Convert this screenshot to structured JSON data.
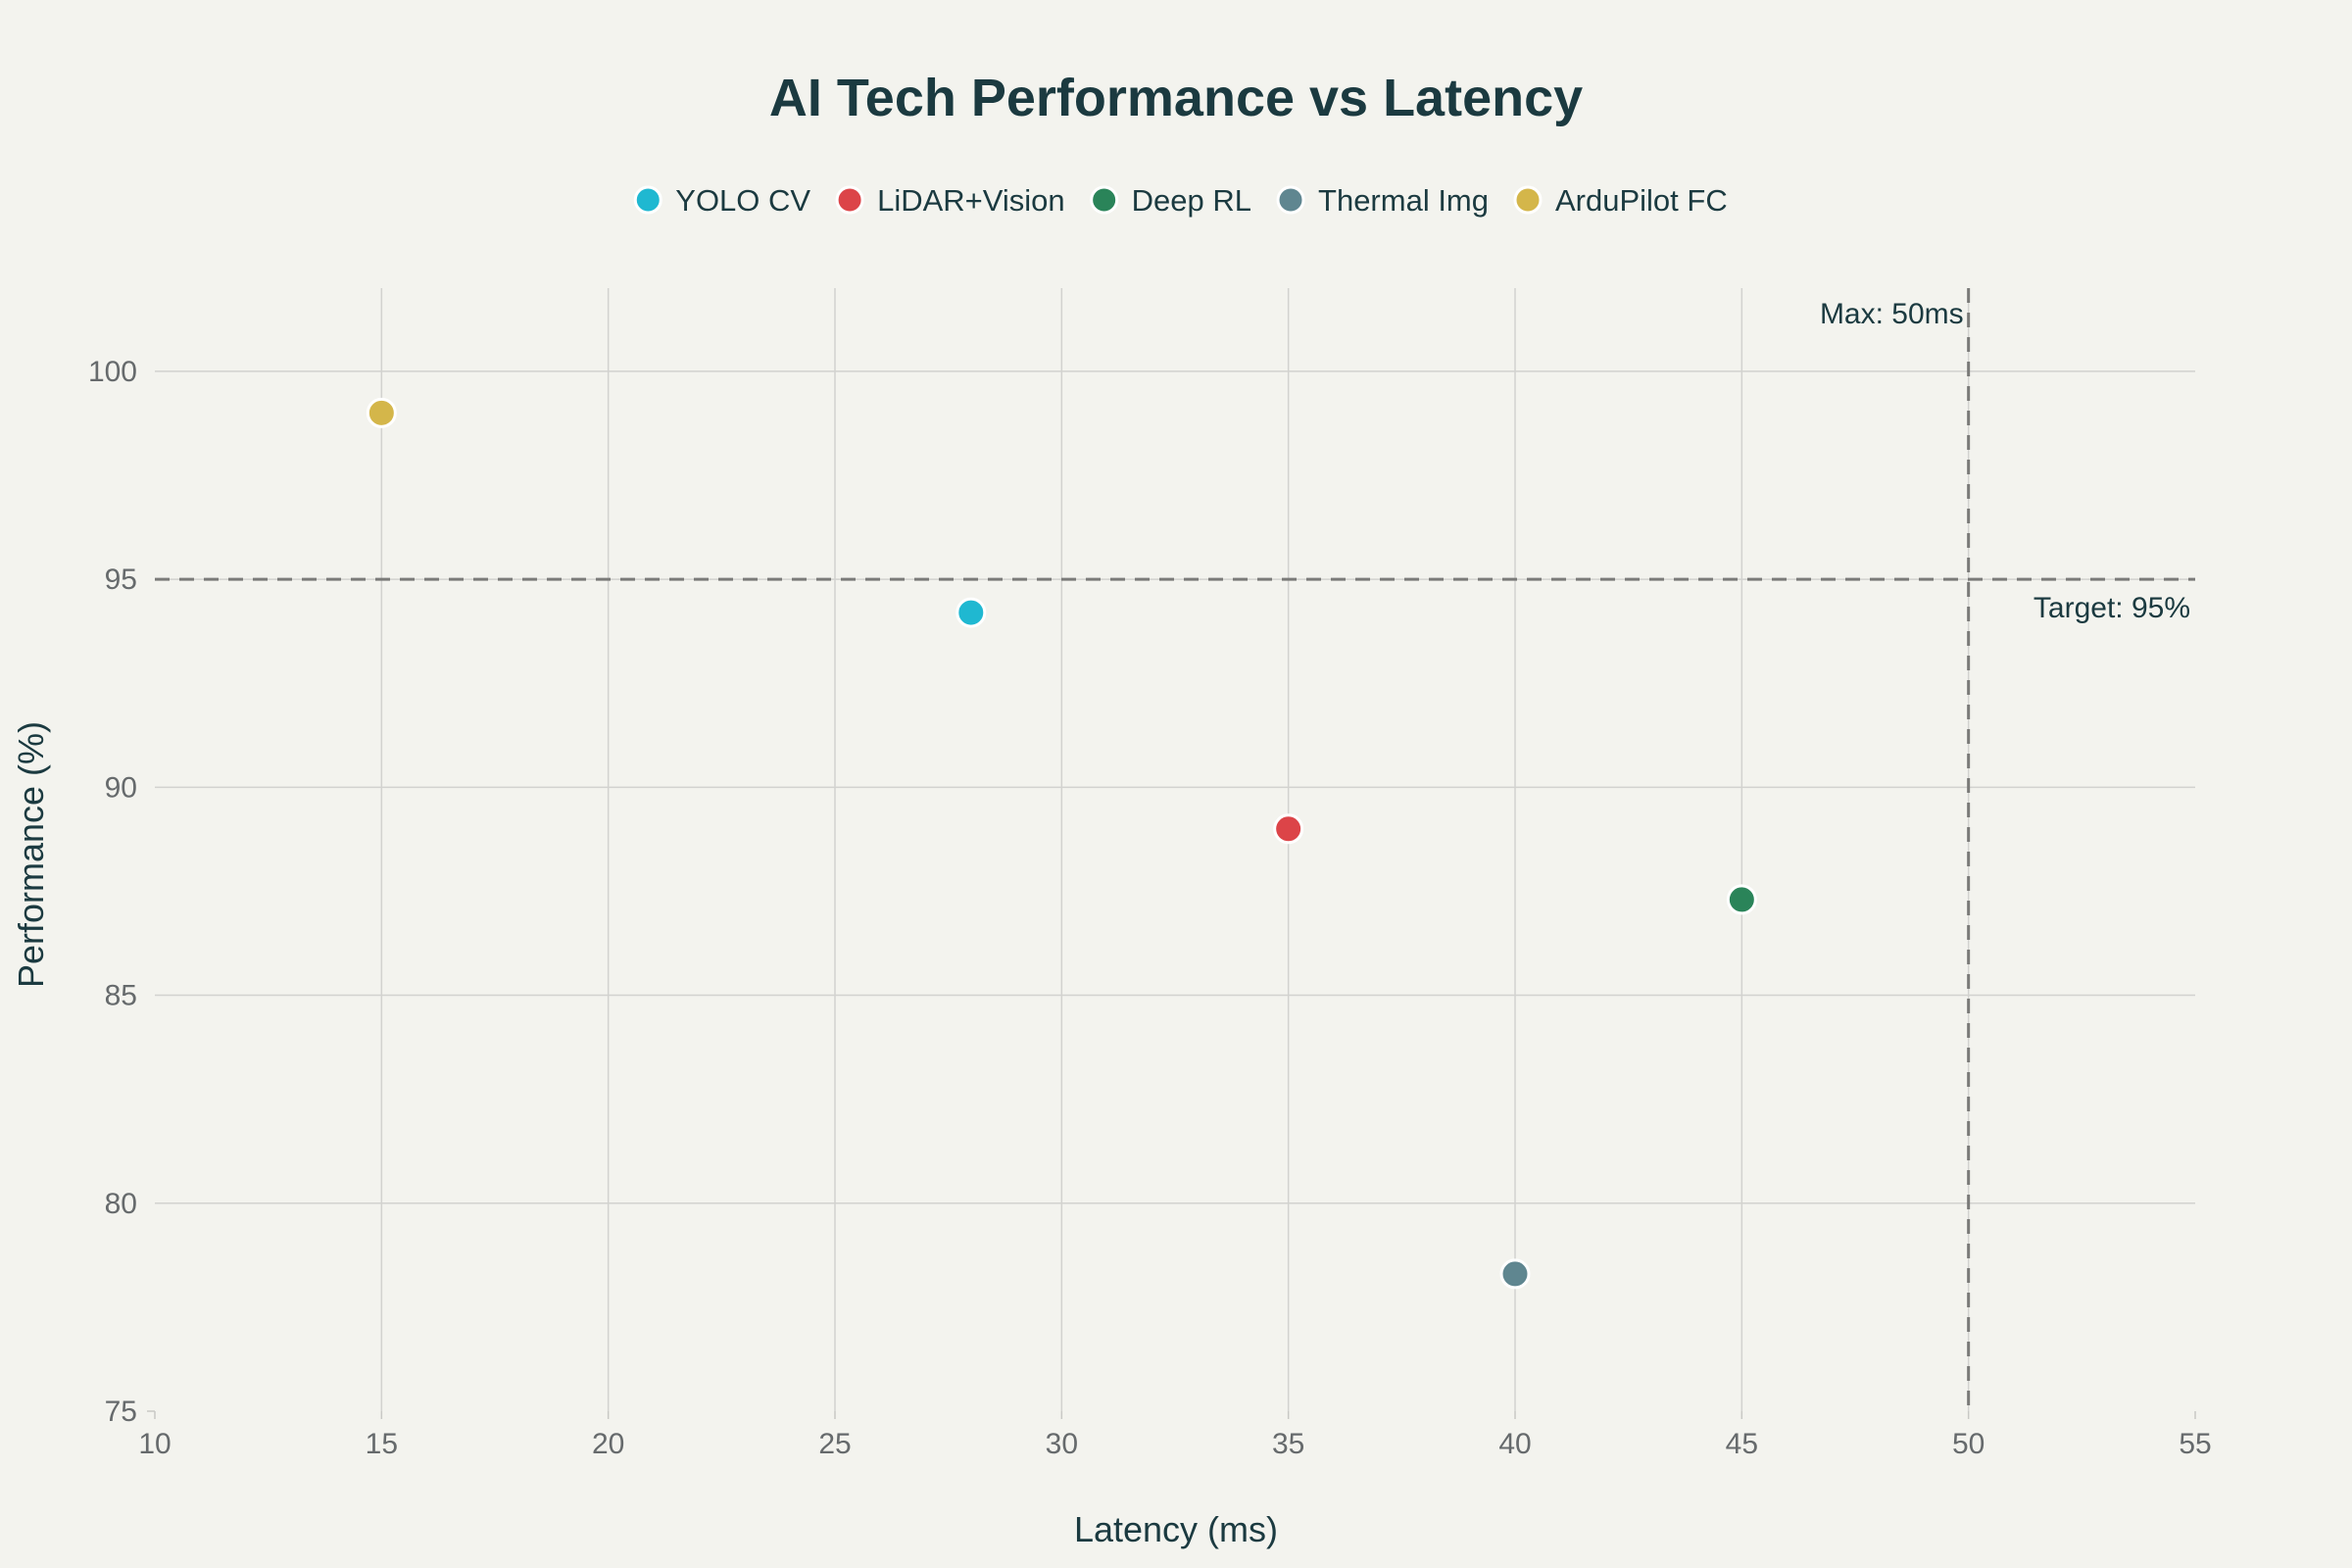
{
  "chart_data": {
    "type": "scatter",
    "title": "AI Tech Performance vs Latency",
    "xlabel": "Latency (ms)",
    "ylabel": "Performance (%)",
    "xlim": [
      10,
      55
    ],
    "ylim": [
      75,
      102
    ],
    "xticks": [
      10,
      15,
      20,
      25,
      30,
      35,
      40,
      45,
      50,
      55
    ],
    "yticks": [
      75,
      80,
      85,
      90,
      95,
      100
    ],
    "grid": true,
    "legend_position": "top-center",
    "series": [
      {
        "name": "YOLO CV",
        "color": "#1fb8d1",
        "x": [
          28
        ],
        "y": [
          94.2
        ]
      },
      {
        "name": "LiDAR+Vision",
        "color": "#dc4448",
        "x": [
          35
        ],
        "y": [
          89
        ]
      },
      {
        "name": "Deep RL",
        "color": "#2a8459",
        "x": [
          45
        ],
        "y": [
          87.3
        ]
      },
      {
        "name": "Thermal Img",
        "color": "#5f8690",
        "x": [
          40
        ],
        "y": [
          78.3
        ]
      },
      {
        "name": "ArduPilot FC",
        "color": "#d4b64a",
        "x": [
          15
        ],
        "y": [
          99
        ]
      }
    ],
    "reference_lines": [
      {
        "orientation": "horizontal",
        "value": 95,
        "label": "Target: 95%"
      },
      {
        "orientation": "vertical",
        "value": 50,
        "label": "Max: 50ms"
      }
    ]
  }
}
